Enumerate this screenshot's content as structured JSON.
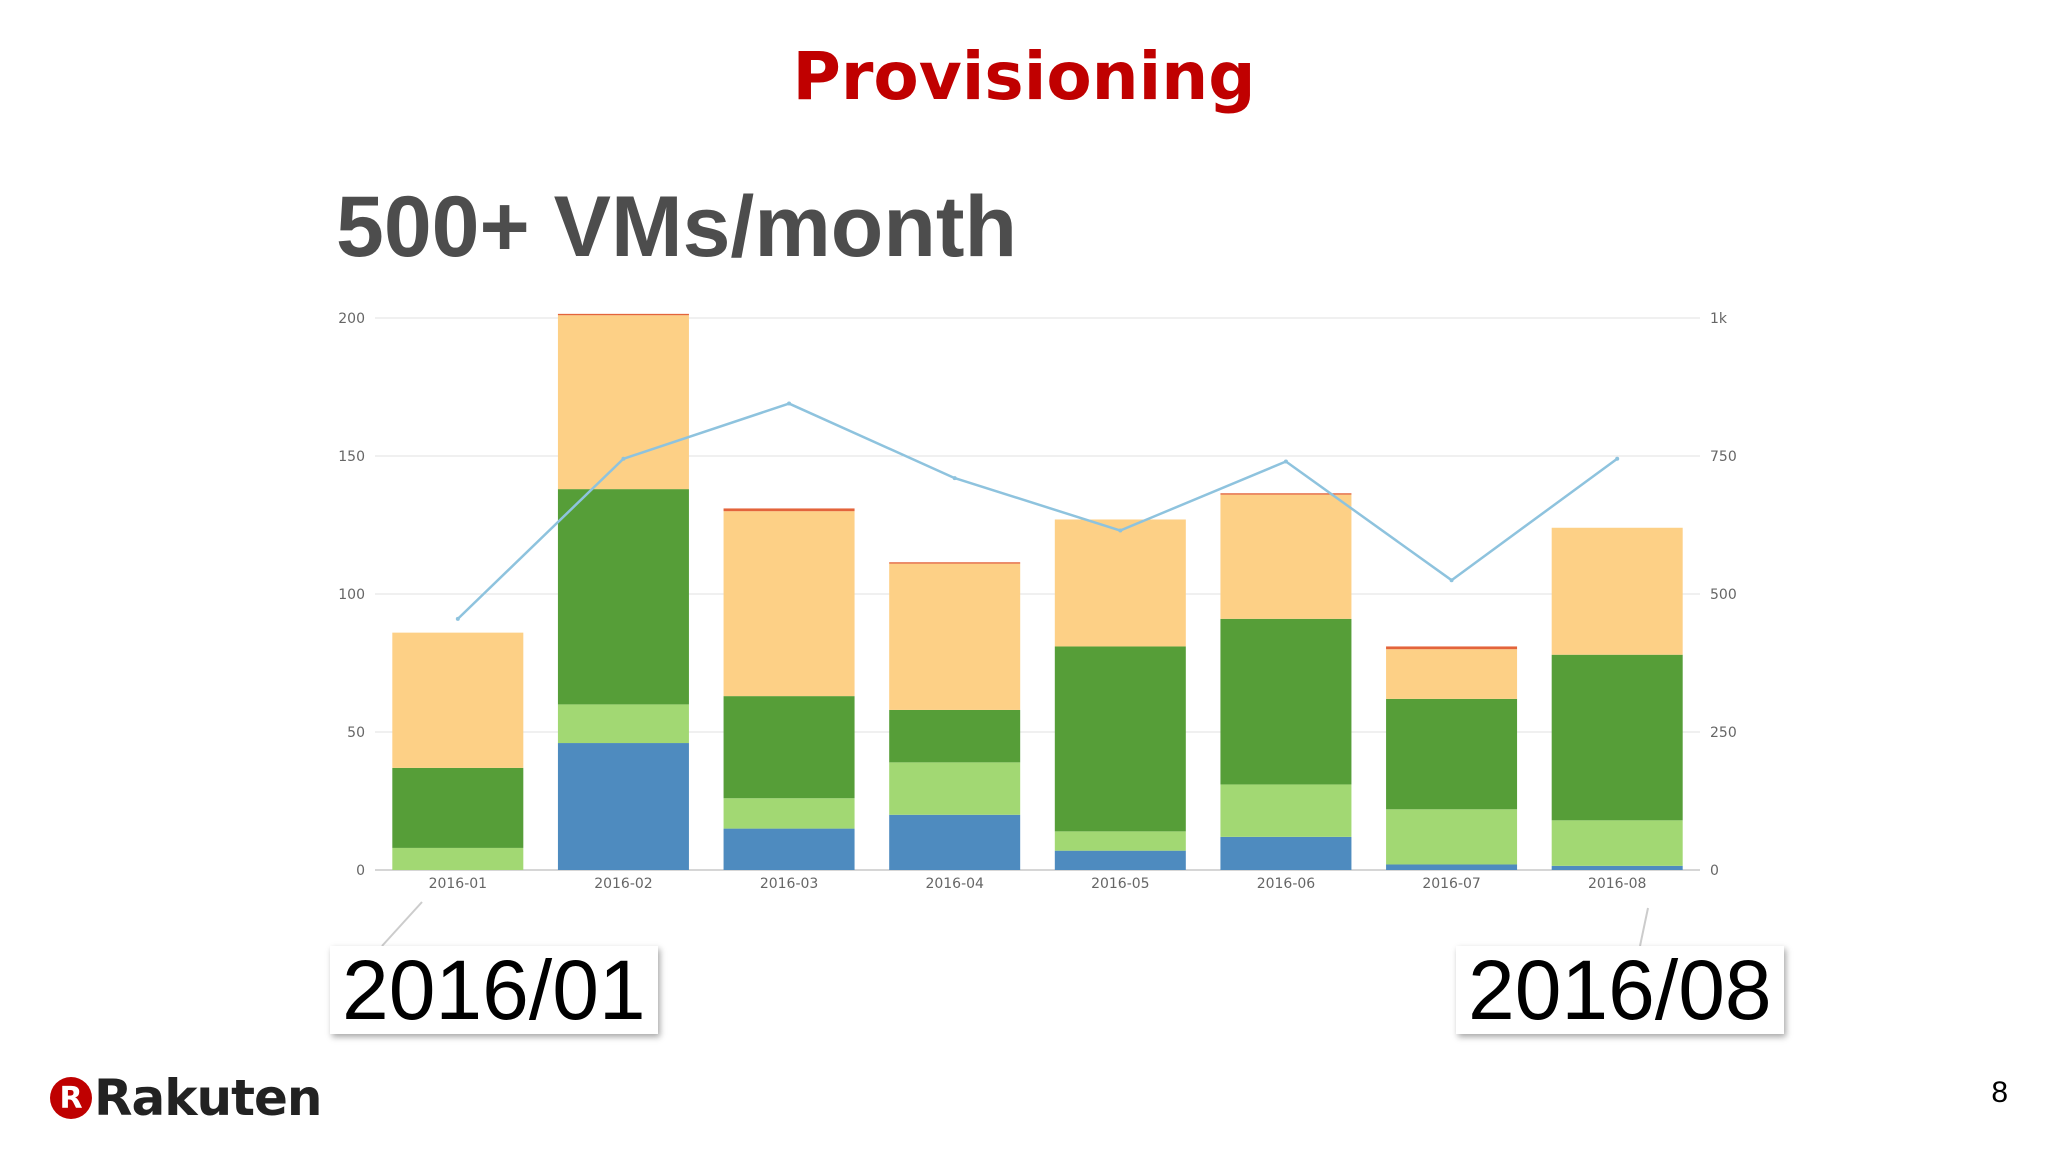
{
  "slide": {
    "title": "Provisioning",
    "headline": "500+ VMs/month",
    "callout_start": "2016/01",
    "callout_end": "2016/08",
    "logo_text": "Rakuten",
    "logo_mark": "R",
    "page_number": "8"
  },
  "colors": {
    "title": "#c00000",
    "headline": "#4d4d4d",
    "series_blue": "#4e8bbf",
    "series_light_green": "#a2d873",
    "series_green": "#569e38",
    "series_orange": "#fdd086",
    "series_red": "#e3643b",
    "line": "#8ec3de"
  },
  "chart_data": {
    "type": "bar",
    "stacked": true,
    "categories": [
      "2016-01",
      "2016-02",
      "2016-03",
      "2016-04",
      "2016-05",
      "2016-06",
      "2016-07",
      "2016-08"
    ],
    "series": [
      {
        "color": "#4e8bbf",
        "values": [
          0,
          46,
          15,
          20,
          7,
          12,
          2,
          1.5
        ]
      },
      {
        "color": "#a2d873",
        "values": [
          8,
          14,
          11,
          19,
          7,
          19,
          20,
          16.5
        ]
      },
      {
        "color": "#569e38",
        "values": [
          29,
          78,
          37,
          19,
          67,
          60,
          40,
          60
        ]
      },
      {
        "color": "#fdd086",
        "values": [
          49,
          63,
          67,
          53,
          46,
          45,
          18,
          46
        ]
      },
      {
        "color": "#e3643b",
        "values": [
          0,
          0.5,
          1,
          0.5,
          0,
          0.5,
          1,
          0
        ]
      }
    ],
    "line_series": {
      "axis": "right",
      "color": "#8ec3de",
      "values": [
        455,
        745,
        845,
        710,
        615,
        740,
        525,
        745
      ]
    },
    "left_axis": {
      "ylim": [
        0,
        200
      ],
      "ticks": [
        "0",
        "50",
        "100",
        "150",
        "200"
      ]
    },
    "right_axis": {
      "ylim": [
        0,
        1000
      ],
      "ticks": [
        "0",
        "250",
        "500",
        "750",
        "1k"
      ]
    },
    "grid": true,
    "legend": "none"
  }
}
